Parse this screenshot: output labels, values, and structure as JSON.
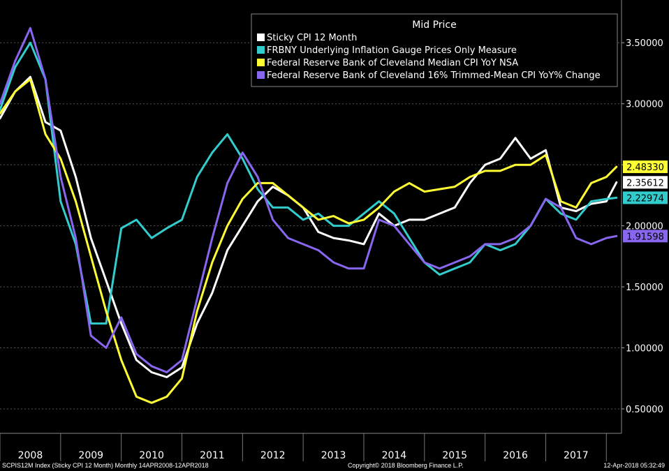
{
  "chart_data": {
    "type": "line",
    "title": "Mid Price",
    "xlabel": "",
    "ylabel": "",
    "x_tick_labels": [
      "2008",
      "2009",
      "2010",
      "2011",
      "2012",
      "2013",
      "2014",
      "2015",
      "2016",
      "2017"
    ],
    "xlim": [
      "2008-01",
      "2018-04"
    ],
    "ylim": [
      0.3,
      3.85
    ],
    "y_ticks": [
      0.5,
      1.0,
      1.5,
      2.0,
      2.5,
      3.0,
      3.5
    ],
    "y_tick_labels": [
      "0.50000",
      "1.00000",
      "1.50000",
      "2.00000",
      "2.50000",
      "3.00000",
      "3.50000"
    ],
    "grid": "horizontal dashed",
    "legend_position": "top-right",
    "series": [
      {
        "name": "Sticky CPI 12 Month",
        "color": "#ffffff",
        "last_value_label": "2.35612",
        "points": [
          [
            "2008-01",
            2.88
          ],
          [
            "2008-04",
            3.1
          ],
          [
            "2008-07",
            3.22
          ],
          [
            "2008-10",
            2.85
          ],
          [
            "2009-01",
            2.78
          ],
          [
            "2009-04",
            2.4
          ],
          [
            "2009-07",
            1.9
          ],
          [
            "2009-10",
            1.55
          ],
          [
            "2010-01",
            1.2
          ],
          [
            "2010-04",
            0.9
          ],
          [
            "2010-07",
            0.8
          ],
          [
            "2010-10",
            0.76
          ],
          [
            "2011-01",
            0.84
          ],
          [
            "2011-04",
            1.2
          ],
          [
            "2011-07",
            1.45
          ],
          [
            "2011-10",
            1.8
          ],
          [
            "2012-01",
            2.0
          ],
          [
            "2012-04",
            2.2
          ],
          [
            "2012-07",
            2.32
          ],
          [
            "2012-10",
            2.25
          ],
          [
            "2013-01",
            2.15
          ],
          [
            "2013-04",
            1.95
          ],
          [
            "2013-07",
            1.9
          ],
          [
            "2013-10",
            1.88
          ],
          [
            "2014-01",
            1.85
          ],
          [
            "2014-04",
            2.1
          ],
          [
            "2014-07",
            2.0
          ],
          [
            "2014-10",
            2.05
          ],
          [
            "2015-01",
            2.05
          ],
          [
            "2015-04",
            2.1
          ],
          [
            "2015-07",
            2.15
          ],
          [
            "2015-10",
            2.35
          ],
          [
            "2016-01",
            2.5
          ],
          [
            "2016-04",
            2.55
          ],
          [
            "2016-07",
            2.72
          ],
          [
            "2016-10",
            2.55
          ],
          [
            "2017-01",
            2.62
          ],
          [
            "2017-04",
            2.15
          ],
          [
            "2017-07",
            2.12
          ],
          [
            "2017-10",
            2.18
          ],
          [
            "2018-01",
            2.2
          ],
          [
            "2018-03",
            2.35612
          ]
        ]
      },
      {
        "name": "FRBNY Underlying Inflation Gauge Prices Only Measure",
        "color": "#33cccc",
        "last_value_label": "2.22974",
        "points": [
          [
            "2008-01",
            2.95
          ],
          [
            "2008-04",
            3.3
          ],
          [
            "2008-07",
            3.5
          ],
          [
            "2008-10",
            3.2
          ],
          [
            "2009-01",
            2.2
          ],
          [
            "2009-04",
            1.85
          ],
          [
            "2009-07",
            1.2
          ],
          [
            "2009-10",
            1.2
          ],
          [
            "2010-01",
            1.98
          ],
          [
            "2010-04",
            2.05
          ],
          [
            "2010-07",
            1.9
          ],
          [
            "2010-10",
            1.98
          ],
          [
            "2011-01",
            2.05
          ],
          [
            "2011-04",
            2.4
          ],
          [
            "2011-07",
            2.6
          ],
          [
            "2011-10",
            2.75
          ],
          [
            "2012-01",
            2.55
          ],
          [
            "2012-04",
            2.3
          ],
          [
            "2012-07",
            2.15
          ],
          [
            "2012-10",
            2.15
          ],
          [
            "2013-01",
            2.05
          ],
          [
            "2013-04",
            2.1
          ],
          [
            "2013-07",
            2.0
          ],
          [
            "2013-10",
            2.0
          ],
          [
            "2014-01",
            2.1
          ],
          [
            "2014-04",
            2.2
          ],
          [
            "2014-07",
            2.1
          ],
          [
            "2014-10",
            1.9
          ],
          [
            "2015-01",
            1.7
          ],
          [
            "2015-04",
            1.6
          ],
          [
            "2015-07",
            1.65
          ],
          [
            "2015-10",
            1.7
          ],
          [
            "2016-01",
            1.85
          ],
          [
            "2016-04",
            1.8
          ],
          [
            "2016-07",
            1.85
          ],
          [
            "2016-10",
            2.0
          ],
          [
            "2017-01",
            2.22
          ],
          [
            "2017-04",
            2.1
          ],
          [
            "2017-07",
            2.05
          ],
          [
            "2017-10",
            2.2
          ],
          [
            "2018-01",
            2.22
          ],
          [
            "2018-03",
            2.22974
          ]
        ]
      },
      {
        "name": "Federal Reserve Bank of Cleveland Median CPI YoY NSA",
        "color": "#ffff33",
        "last_value_label": "2.48330",
        "points": [
          [
            "2008-01",
            2.92
          ],
          [
            "2008-04",
            3.1
          ],
          [
            "2008-07",
            3.2
          ],
          [
            "2008-10",
            2.75
          ],
          [
            "2009-01",
            2.55
          ],
          [
            "2009-04",
            2.2
          ],
          [
            "2009-07",
            1.75
          ],
          [
            "2009-10",
            1.3
          ],
          [
            "2010-01",
            0.9
          ],
          [
            "2010-04",
            0.6
          ],
          [
            "2010-07",
            0.55
          ],
          [
            "2010-10",
            0.6
          ],
          [
            "2011-01",
            0.75
          ],
          [
            "2011-04",
            1.3
          ],
          [
            "2011-07",
            1.7
          ],
          [
            "2011-10",
            2.0
          ],
          [
            "2012-01",
            2.22
          ],
          [
            "2012-04",
            2.35
          ],
          [
            "2012-07",
            2.35
          ],
          [
            "2012-10",
            2.25
          ],
          [
            "2013-01",
            2.15
          ],
          [
            "2013-04",
            2.05
          ],
          [
            "2013-07",
            2.08
          ],
          [
            "2013-10",
            2.02
          ],
          [
            "2014-01",
            2.05
          ],
          [
            "2014-04",
            2.15
          ],
          [
            "2014-07",
            2.28
          ],
          [
            "2014-10",
            2.35
          ],
          [
            "2015-01",
            2.28
          ],
          [
            "2015-04",
            2.3
          ],
          [
            "2015-07",
            2.32
          ],
          [
            "2015-10",
            2.4
          ],
          [
            "2016-01",
            2.45
          ],
          [
            "2016-04",
            2.45
          ],
          [
            "2016-07",
            2.5
          ],
          [
            "2016-10",
            2.5
          ],
          [
            "2017-01",
            2.58
          ],
          [
            "2017-04",
            2.2
          ],
          [
            "2017-07",
            2.15
          ],
          [
            "2017-10",
            2.35
          ],
          [
            "2018-01",
            2.4
          ],
          [
            "2018-03",
            2.4833
          ]
        ]
      },
      {
        "name": "Federal Reserve Bank of Cleveland 16% Trimmed-Mean CPI YoY% Change",
        "color": "#8866ee",
        "last_value_label": "1.91598",
        "points": [
          [
            "2008-01",
            3.0
          ],
          [
            "2008-04",
            3.35
          ],
          [
            "2008-07",
            3.62
          ],
          [
            "2008-10",
            3.2
          ],
          [
            "2009-01",
            2.4
          ],
          [
            "2009-04",
            1.9
          ],
          [
            "2009-07",
            1.1
          ],
          [
            "2009-10",
            1.0
          ],
          [
            "2010-01",
            1.25
          ],
          [
            "2010-04",
            0.95
          ],
          [
            "2010-07",
            0.85
          ],
          [
            "2010-10",
            0.8
          ],
          [
            "2011-01",
            0.9
          ],
          [
            "2011-04",
            1.4
          ],
          [
            "2011-07",
            1.9
          ],
          [
            "2011-10",
            2.35
          ],
          [
            "2012-01",
            2.6
          ],
          [
            "2012-04",
            2.4
          ],
          [
            "2012-07",
            2.05
          ],
          [
            "2012-10",
            1.9
          ],
          [
            "2013-01",
            1.85
          ],
          [
            "2013-04",
            1.8
          ],
          [
            "2013-07",
            1.7
          ],
          [
            "2013-10",
            1.65
          ],
          [
            "2014-01",
            1.65
          ],
          [
            "2014-04",
            2.05
          ],
          [
            "2014-07",
            2.0
          ],
          [
            "2014-10",
            1.85
          ],
          [
            "2015-01",
            1.7
          ],
          [
            "2015-04",
            1.65
          ],
          [
            "2015-07",
            1.7
          ],
          [
            "2015-10",
            1.75
          ],
          [
            "2016-01",
            1.85
          ],
          [
            "2016-04",
            1.85
          ],
          [
            "2016-07",
            1.9
          ],
          [
            "2016-10",
            2.0
          ],
          [
            "2017-01",
            2.22
          ],
          [
            "2017-04",
            2.15
          ],
          [
            "2017-07",
            1.9
          ],
          [
            "2017-10",
            1.85
          ],
          [
            "2018-01",
            1.9
          ],
          [
            "2018-03",
            1.91598
          ]
        ]
      }
    ]
  },
  "footer": {
    "left": "SCPIS12M Index (Sticky CPI 12 Month)  Monthly 14APR2008-12APR2018",
    "center": "Copyright© 2018 Bloomberg Finance L.P.",
    "right": "12-Apr-2018 05:32:49"
  }
}
